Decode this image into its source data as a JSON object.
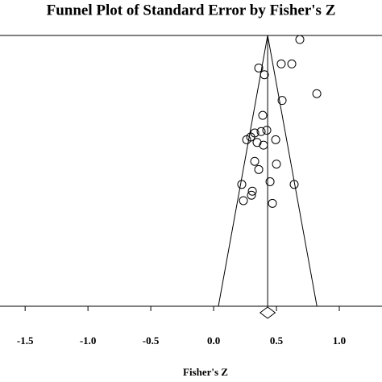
{
  "chart_data": {
    "type": "funnel",
    "title": "Funnel Plot of Standard Error by Fisher's Z",
    "x_label": "Fisher's Z",
    "xlim": [
      -1.7,
      1.34
    ],
    "ylim": [
      0.2,
      0
    ],
    "xticks": [
      {
        "value": -1.5,
        "label": "-1.5"
      },
      {
        "value": -1.0,
        "label": "-1.0"
      },
      -0.5,
      {
        "value": 0.0,
        "label": "0.0"
      },
      0.5,
      {
        "value": 1.0,
        "label": "1.0"
      }
    ],
    "color": "#000000",
    "x": [
      0.686,
      0.538,
      0.622,
      0.359,
      0.404,
      0.821,
      0.545,
      0.391,
      0.423,
      0.327,
      0.378,
      0.295,
      0.263,
      0.346,
      0.397,
      0.494,
      0.327,
      0.5,
      0.359,
      0.449,
      0.641,
      0.224,
      0.308,
      0.301,
      0.237,
      0.468
    ],
    "values": [
      0.003,
      0.021,
      0.021,
      0.024,
      0.029,
      0.043,
      0.048,
      0.059,
      0.07,
      0.072,
      0.071,
      0.075,
      0.077,
      0.079,
      0.081,
      0.077,
      0.093,
      0.095,
      0.099,
      0.108,
      0.11,
      0.11,
      0.115,
      0.118,
      0.122,
      0.124
    ],
    "summary": {
      "estimate": 0.43,
      "lower": 0.37,
      "upper": 0.49
    }
  }
}
